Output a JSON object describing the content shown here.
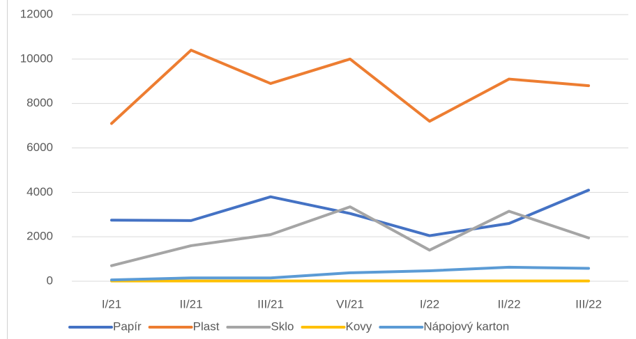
{
  "chart_data": {
    "type": "line",
    "categories": [
      "I/21",
      "II/21",
      "III/21",
      "VI/21",
      "I/22",
      "II/22",
      "III/22"
    ],
    "series": [
      {
        "name": "Papír",
        "color": "#4472c4",
        "values": [
          2750,
          2730,
          3800,
          3050,
          2050,
          2600,
          4100
        ]
      },
      {
        "name": "Plast",
        "color": "#ed7d31",
        "values": [
          7100,
          10400,
          8900,
          10000,
          7200,
          9100,
          8800
        ]
      },
      {
        "name": "Sklo",
        "color": "#a5a5a5",
        "values": [
          700,
          1600,
          2100,
          3350,
          1400,
          3150,
          1950
        ]
      },
      {
        "name": "Kovy",
        "color": "#ffc000",
        "values": [
          10,
          10,
          10,
          10,
          10,
          10,
          10
        ]
      },
      {
        "name": "Nápojový karton",
        "color": "#5b9bd5",
        "values": [
          60,
          150,
          150,
          380,
          470,
          630,
          580
        ]
      }
    ],
    "ylim": [
      0,
      12000
    ],
    "yticks": [
      0,
      2000,
      4000,
      6000,
      8000,
      10000,
      12000
    ],
    "grid": true,
    "legend": "bottom"
  }
}
